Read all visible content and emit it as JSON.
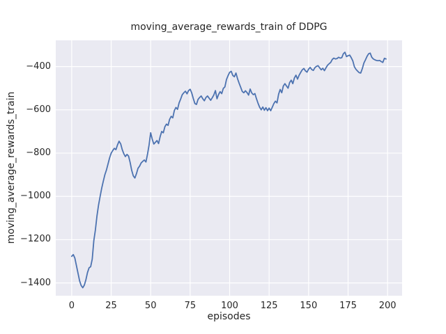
{
  "chart_data": {
    "type": "line",
    "title": "moving_average_rewards_train of DDPG",
    "xlabel": "episodes",
    "ylabel": "moving_average_rewards_train",
    "xlim": [
      -10.1,
      209.2
    ],
    "ylim": [
      -1459,
      -279
    ],
    "grid": true,
    "legend_position": "none",
    "xticks": {
      "values": [
        0,
        25,
        50,
        75,
        100,
        125,
        150,
        175,
        200
      ],
      "labels": [
        "0",
        "25",
        "50",
        "75",
        "100",
        "125",
        "150",
        "175",
        "200"
      ]
    },
    "yticks": {
      "values": [
        -400,
        -600,
        -800,
        -1000,
        -1200,
        -1400
      ],
      "labels": [
        "−400",
        "−600",
        "−800",
        "−1000",
        "−1200",
        "−1400"
      ]
    },
    "colors": {
      "figure_background": "#ffffff",
      "axes_background": "#eaeaf2",
      "grid": "#ffffff",
      "line": "#4c72b0",
      "text": "#262626"
    },
    "series": [
      {
        "name": "moving_average_rewards_train",
        "color": "#4c72b0",
        "x_start": 0,
        "x_step": 1,
        "y": [
          -1277,
          -1269,
          -1285,
          -1320,
          -1355,
          -1390,
          -1412,
          -1422,
          -1410,
          -1385,
          -1352,
          -1330,
          -1325,
          -1290,
          -1205,
          -1155,
          -1090,
          -1040,
          -1000,
          -962,
          -930,
          -900,
          -878,
          -850,
          -822,
          -800,
          -788,
          -778,
          -784,
          -762,
          -745,
          -757,
          -784,
          -803,
          -816,
          -806,
          -814,
          -843,
          -880,
          -905,
          -915,
          -895,
          -870,
          -860,
          -845,
          -838,
          -832,
          -841,
          -805,
          -762,
          -706,
          -736,
          -758,
          -750,
          -742,
          -756,
          -724,
          -700,
          -706,
          -678,
          -666,
          -672,
          -644,
          -630,
          -637,
          -603,
          -589,
          -598,
          -568,
          -550,
          -530,
          -521,
          -514,
          -526,
          -511,
          -505,
          -522,
          -548,
          -571,
          -575,
          -552,
          -543,
          -536,
          -549,
          -558,
          -543,
          -536,
          -546,
          -556,
          -544,
          -531,
          -511,
          -549,
          -529,
          -516,
          -525,
          -501,
          -494,
          -460,
          -442,
          -427,
          -422,
          -441,
          -447,
          -430,
          -456,
          -477,
          -496,
          -515,
          -521,
          -512,
          -520,
          -532,
          -504,
          -522,
          -530,
          -525,
          -549,
          -570,
          -588,
          -600,
          -587,
          -602,
          -590,
          -604,
          -592,
          -604,
          -588,
          -571,
          -560,
          -568,
          -528,
          -506,
          -521,
          -490,
          -479,
          -490,
          -500,
          -474,
          -463,
          -479,
          -453,
          -440,
          -458,
          -440,
          -427,
          -415,
          -409,
          -420,
          -426,
          -412,
          -404,
          -414,
          -418,
          -405,
          -399,
          -396,
          -406,
          -415,
          -408,
          -419,
          -406,
          -394,
          -387,
          -381,
          -367,
          -361,
          -365,
          -363,
          -357,
          -361,
          -359,
          -341,
          -334,
          -354,
          -350,
          -347,
          -359,
          -374,
          -401,
          -413,
          -421,
          -428,
          -430,
          -410,
          -384,
          -369,
          -353,
          -341,
          -338,
          -357,
          -365,
          -369,
          -372,
          -373,
          -372,
          -377,
          -381,
          -362,
          -365
        ]
      }
    ]
  }
}
